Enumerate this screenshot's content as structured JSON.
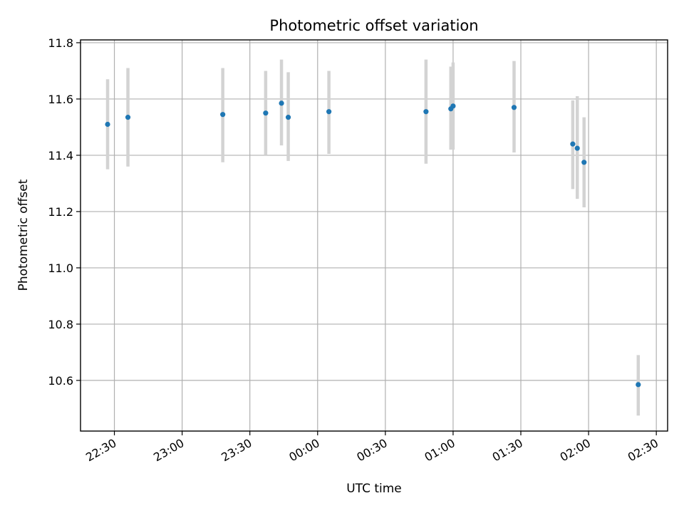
{
  "chart_data": {
    "type": "scatter",
    "title": "Photometric offset variation",
    "xlabel": "UTC time",
    "ylabel": "Photometric offset",
    "grid": true,
    "legend": "none",
    "x_axis": {
      "unit": "UTC time",
      "range": [
        "22:15",
        "02:35"
      ],
      "ticks": [
        "22:30",
        "23:00",
        "23:30",
        "00:00",
        "00:30",
        "01:00",
        "01:30",
        "02:00",
        "02:30"
      ]
    },
    "y_axis": {
      "range": [
        10.42,
        11.81
      ],
      "ticks": [
        "10.6",
        "10.8",
        "11.0",
        "11.2",
        "11.4",
        "11.6",
        "11.8"
      ]
    },
    "colors": {
      "point": "#1f77b4",
      "errorbar": "#d3d3d3",
      "grid": "#b0b0b0"
    },
    "points": [
      {
        "t": "22:27",
        "y": 11.51,
        "lo": 11.35,
        "hi": 11.67
      },
      {
        "t": "22:36",
        "y": 11.535,
        "lo": 11.36,
        "hi": 11.71
      },
      {
        "t": "23:18",
        "y": 11.545,
        "lo": 11.375,
        "hi": 11.71
      },
      {
        "t": "23:37",
        "y": 11.55,
        "lo": 11.4,
        "hi": 11.7
      },
      {
        "t": "23:44",
        "y": 11.585,
        "lo": 11.435,
        "hi": 11.74
      },
      {
        "t": "23:47",
        "y": 11.535,
        "lo": 11.38,
        "hi": 11.695
      },
      {
        "t": "00:05",
        "y": 11.555,
        "lo": 11.405,
        "hi": 11.7
      },
      {
        "t": "00:48",
        "y": 11.555,
        "lo": 11.37,
        "hi": 11.74
      },
      {
        "t": "00:59",
        "y": 11.565,
        "lo": 11.42,
        "hi": 11.715
      },
      {
        "t": "01:00",
        "y": 11.575,
        "lo": 11.42,
        "hi": 11.73
      },
      {
        "t": "01:27",
        "y": 11.57,
        "lo": 11.41,
        "hi": 11.735
      },
      {
        "t": "01:53",
        "y": 11.44,
        "lo": 11.28,
        "hi": 11.595
      },
      {
        "t": "01:55",
        "y": 11.425,
        "lo": 11.245,
        "hi": 11.61
      },
      {
        "t": "01:58",
        "y": 11.375,
        "lo": 11.215,
        "hi": 11.535
      },
      {
        "t": "02:22",
        "y": 10.585,
        "lo": 10.475,
        "hi": 10.69
      }
    ]
  }
}
